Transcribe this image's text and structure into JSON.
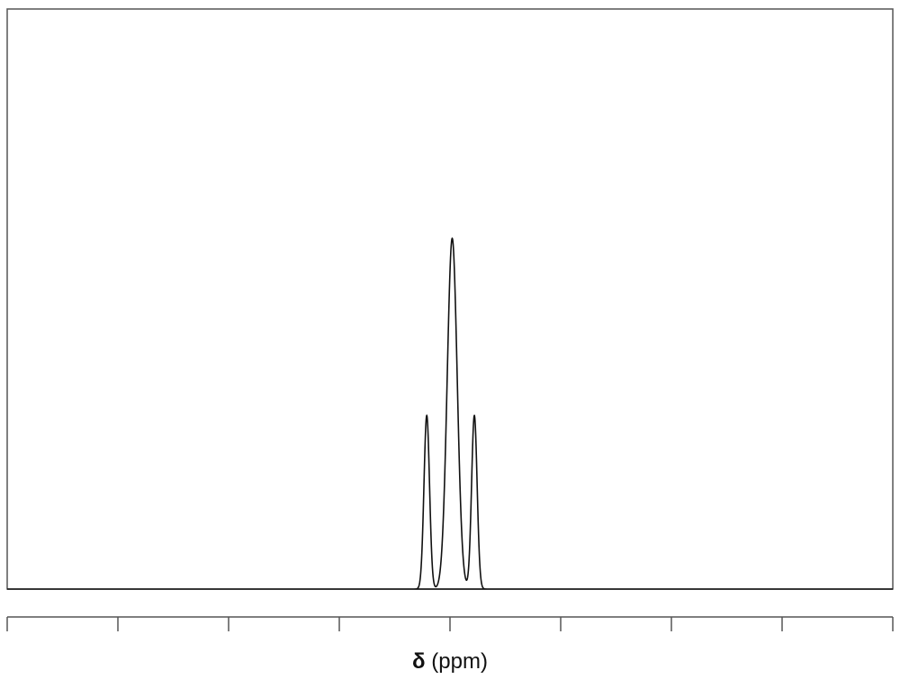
{
  "chart_data": {
    "type": "line",
    "title": "",
    "xlabel_symbol": "δ",
    "xlabel_unit": "(ppm)",
    "ylabel": "",
    "x_reversed": true,
    "xlim": [
      0,
      8
    ],
    "ylim": [
      0,
      1.0
    ],
    "x_tick_values": [
      0,
      1,
      2,
      3,
      4,
      5,
      6,
      7,
      8
    ],
    "x_tick_labels": [],
    "grid": false,
    "series": [
      {
        "peaks": [
          {
            "x": 4.21,
            "height": 0.49,
            "width": 0.025
          },
          {
            "x": 3.98,
            "height": 0.99,
            "width": 0.045
          },
          {
            "x": 3.78,
            "height": 0.49,
            "width": 0.025
          }
        ],
        "range": [
          3.65,
          4.35
        ]
      }
    ],
    "colors": {
      "line": "#111111",
      "frame": "#555555"
    }
  }
}
